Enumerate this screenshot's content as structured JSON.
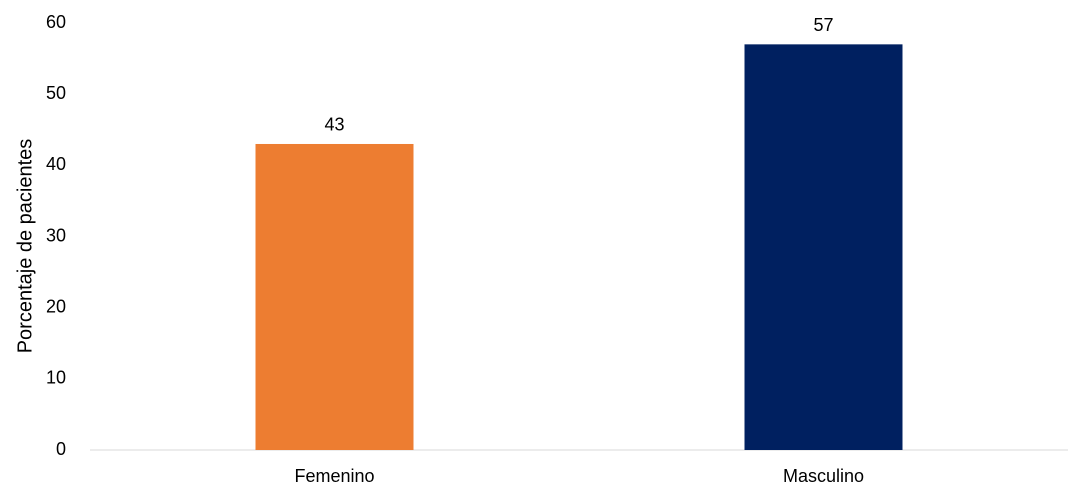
{
  "chart_data": {
    "type": "bar",
    "categories": [
      "Femenino",
      "Masculino"
    ],
    "values": [
      43,
      57
    ],
    "data_labels": [
      "43",
      "57"
    ],
    "colors": [
      "#ED7D31",
      "#002060"
    ],
    "title": "",
    "xlabel": "",
    "ylabel": "Porcentaje de pacientes",
    "ylim": [
      0,
      60
    ],
    "yticks": [
      0,
      10,
      20,
      30,
      40,
      50,
      60
    ],
    "ytick_labels": [
      "0",
      "10",
      "20",
      "30",
      "40",
      "50",
      "60"
    ],
    "grid": false,
    "legend": "none"
  }
}
